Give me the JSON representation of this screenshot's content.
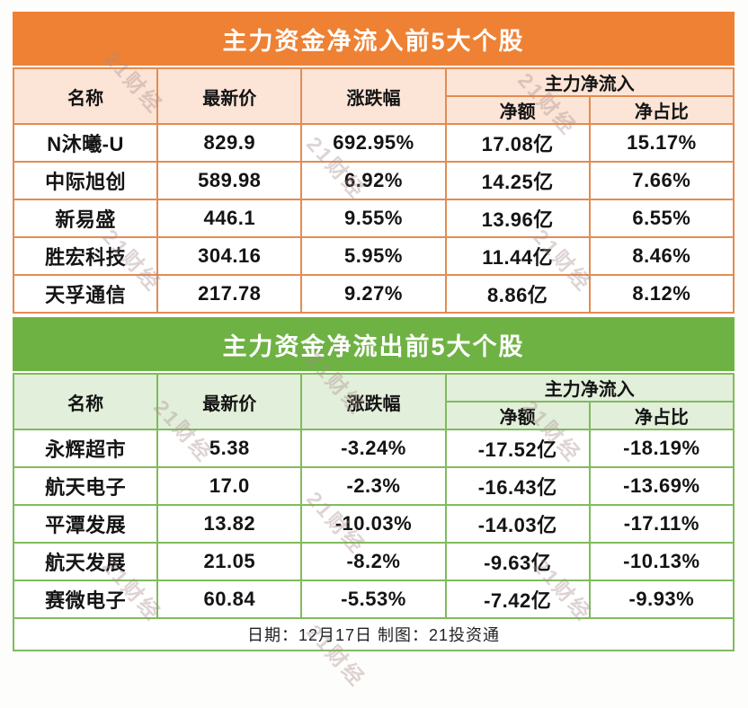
{
  "watermark": {
    "text": "21财经",
    "color": "#d0bebe"
  },
  "tables": [
    {
      "id": "inflow",
      "title": "主力资金净流入前5大个股",
      "theme": {
        "banner_bg": "#EE8133",
        "header_bg": "#FCE4D6",
        "border": "#E28C52"
      },
      "columns": {
        "name": "名称",
        "price": "最新价",
        "change": "涨跌幅",
        "group": "主力净流入",
        "net": "净额",
        "ratio": "净占比"
      },
      "rows": [
        {
          "name": "N沐曦-U",
          "price": "829.9",
          "change": "692.95%",
          "net": "17.08亿",
          "ratio": "15.17%"
        },
        {
          "name": "中际旭创",
          "price": "589.98",
          "change": "6.92%",
          "net": "14.25亿",
          "ratio": "7.66%"
        },
        {
          "name": "新易盛",
          "price": "446.1",
          "change": "9.55%",
          "net": "13.96亿",
          "ratio": "6.55%"
        },
        {
          "name": "胜宏科技",
          "price": "304.16",
          "change": "5.95%",
          "net": "11.44亿",
          "ratio": "8.46%"
        },
        {
          "name": "天孚通信",
          "price": "217.78",
          "change": "9.27%",
          "net": "8.86亿",
          "ratio": "8.12%"
        }
      ]
    },
    {
      "id": "outflow",
      "title": "主力资金净流出前5大个股",
      "theme": {
        "banner_bg": "#6EB244",
        "header_bg": "#E2EFDA",
        "border": "#7FBC5C"
      },
      "columns": {
        "name": "名称",
        "price": "最新价",
        "change": "涨跌幅",
        "group": "主力净流入",
        "net": "净额",
        "ratio": "净占比"
      },
      "rows": [
        {
          "name": "永辉超市",
          "price": "5.38",
          "change": "-3.24%",
          "net": "-17.52亿",
          "ratio": "-18.19%"
        },
        {
          "name": "航天电子",
          "price": "17.0",
          "change": "-2.3%",
          "net": "-16.43亿",
          "ratio": "-13.69%"
        },
        {
          "name": "平潭发展",
          "price": "13.82",
          "change": "-10.03%",
          "net": "-14.03亿",
          "ratio": "-17.11%"
        },
        {
          "name": "航天发展",
          "price": "21.05",
          "change": "-8.2%",
          "net": "-9.63亿",
          "ratio": "-10.13%"
        },
        {
          "name": "赛微电子",
          "price": "60.84",
          "change": "-5.53%",
          "net": "-7.42亿",
          "ratio": "-9.93%"
        }
      ]
    }
  ],
  "footer": {
    "text": "日期：12月17日 制图：21投资通"
  },
  "chart_data": [
    {
      "type": "table",
      "title": "主力资金净流入前5大个股",
      "columns": [
        "名称",
        "最新价",
        "涨跌幅",
        "主力净流入 净额",
        "主力净流入 净占比"
      ],
      "rows": [
        [
          "N沐曦-U",
          "829.9",
          "692.95%",
          "17.08亿",
          "15.17%"
        ],
        [
          "中际旭创",
          "589.98",
          "6.92%",
          "14.25亿",
          "7.66%"
        ],
        [
          "新易盛",
          "446.1",
          "9.55%",
          "13.96亿",
          "6.55%"
        ],
        [
          "胜宏科技",
          "304.16",
          "5.95%",
          "11.44亿",
          "8.46%"
        ],
        [
          "天孚通信",
          "217.78",
          "9.27%",
          "8.86亿",
          "8.12%"
        ]
      ]
    },
    {
      "type": "table",
      "title": "主力资金净流出前5大个股",
      "columns": [
        "名称",
        "最新价",
        "涨跌幅",
        "主力净流入 净额",
        "主力净流入 净占比"
      ],
      "rows": [
        [
          "永辉超市",
          "5.38",
          "-3.24%",
          "-17.52亿",
          "-18.19%"
        ],
        [
          "航天电子",
          "17.0",
          "-2.3%",
          "-16.43亿",
          "-13.69%"
        ],
        [
          "平潭发展",
          "13.82",
          "-10.03%",
          "-14.03亿",
          "-17.11%"
        ],
        [
          "航天发展",
          "21.05",
          "-8.2%",
          "-9.63亿",
          "-10.13%"
        ],
        [
          "赛微电子",
          "60.84",
          "-5.53%",
          "-7.42亿",
          "-9.93%"
        ]
      ]
    }
  ]
}
